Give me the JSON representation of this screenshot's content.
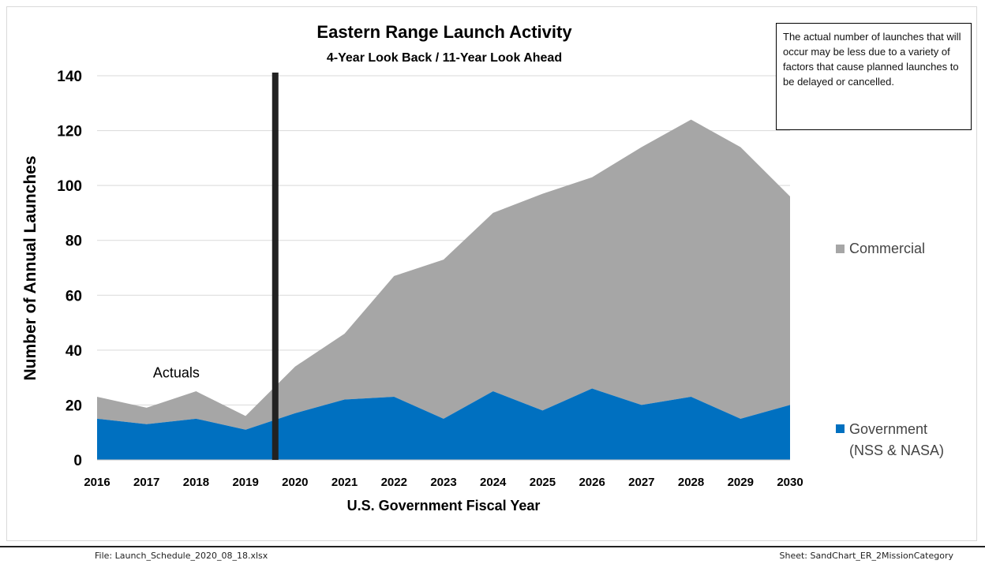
{
  "chart_data": {
    "type": "area",
    "stacked": true,
    "title": "Eastern Range Launch Activity",
    "subtitle": "4-Year Look Back / 11-Year Look Ahead",
    "xlabel": "U.S. Government Fiscal Year",
    "ylabel": "Number of Annual Launches",
    "x": [
      "2016",
      "2017",
      "2018",
      "2019",
      "2020",
      "2021",
      "2022",
      "2023",
      "2024",
      "2025",
      "2026",
      "2027",
      "2028",
      "2029",
      "2030"
    ],
    "ylim": [
      0,
      140
    ],
    "yticks": [
      0,
      20,
      40,
      60,
      80,
      100,
      120,
      140
    ],
    "series": [
      {
        "name": "Government (NSS & NASA)",
        "legend_lines": [
          "Government",
          "(NSS & NASA)"
        ],
        "color": "#0070c0",
        "values": [
          15,
          13,
          15,
          11,
          17,
          22,
          23,
          15,
          25,
          18,
          26,
          20,
          23,
          15,
          20
        ]
      },
      {
        "name": "Commercial",
        "legend_lines": [
          "Commercial"
        ],
        "color": "#a6a6a6",
        "values": [
          8,
          6,
          10,
          5,
          17,
          24,
          44,
          58,
          65,
          79,
          77,
          94,
          101,
          99,
          76
        ]
      }
    ],
    "divider_x": 2019.6,
    "annotations": [
      {
        "text": "Actuals",
        "x": 2017.6,
        "y": 30
      }
    ],
    "legend_position": "right",
    "grid": true
  },
  "note": "The actual number of launches that will occur may be less due to a variety of factors that cause planned launches to be delayed or cancelled.",
  "footer": {
    "file": "File: Launch_Schedule_2020_08_18.xlsx",
    "sheet": "Sheet: SandChart_ER_2MissionCategory"
  }
}
